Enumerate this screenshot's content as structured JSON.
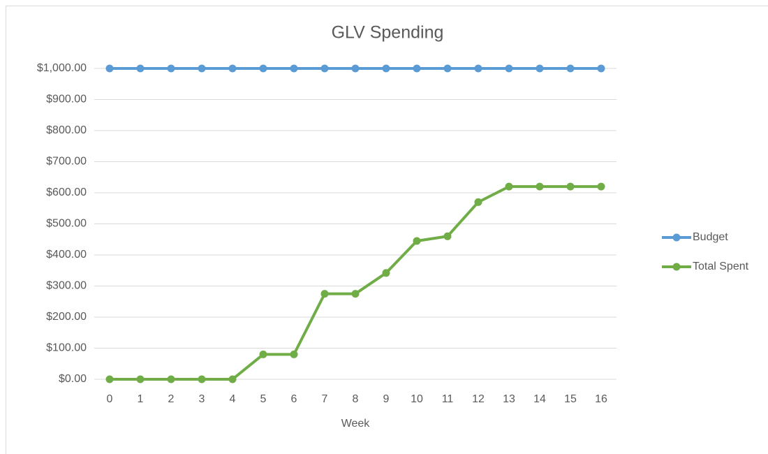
{
  "chart_data": {
    "type": "line",
    "title": "GLV Spending",
    "x_label": "Week",
    "categories": [
      0,
      1,
      2,
      3,
      4,
      5,
      6,
      7,
      8,
      9,
      10,
      11,
      12,
      13,
      14,
      15,
      16
    ],
    "series": [
      {
        "name": "Budget",
        "color": "#5b9bd5",
        "values": [
          1000,
          1000,
          1000,
          1000,
          1000,
          1000,
          1000,
          1000,
          1000,
          1000,
          1000,
          1000,
          1000,
          1000,
          1000,
          1000,
          1000
        ]
      },
      {
        "name": "Total Spent",
        "color": "#70ad47",
        "values": [
          0,
          0,
          0,
          0,
          0,
          80,
          80,
          275,
          275,
          342,
          445,
          460,
          570,
          620,
          620,
          620,
          620
        ]
      }
    ],
    "ylim": [
      0,
      1000
    ],
    "yticks": [
      {
        "value": 0,
        "label": "$0.00"
      },
      {
        "value": 100,
        "label": "$100.00"
      },
      {
        "value": 200,
        "label": "$200.00"
      },
      {
        "value": 300,
        "label": "$300.00"
      },
      {
        "value": 400,
        "label": "$400.00"
      },
      {
        "value": 500,
        "label": "$500.00"
      },
      {
        "value": 600,
        "label": "$600.00"
      },
      {
        "value": 700,
        "label": "$700.00"
      },
      {
        "value": 800,
        "label": "$800.00"
      },
      {
        "value": 900,
        "label": "$900.00"
      },
      {
        "value": 1000,
        "label": "$1,000.00"
      }
    ],
    "grid": true,
    "legend": "right"
  }
}
